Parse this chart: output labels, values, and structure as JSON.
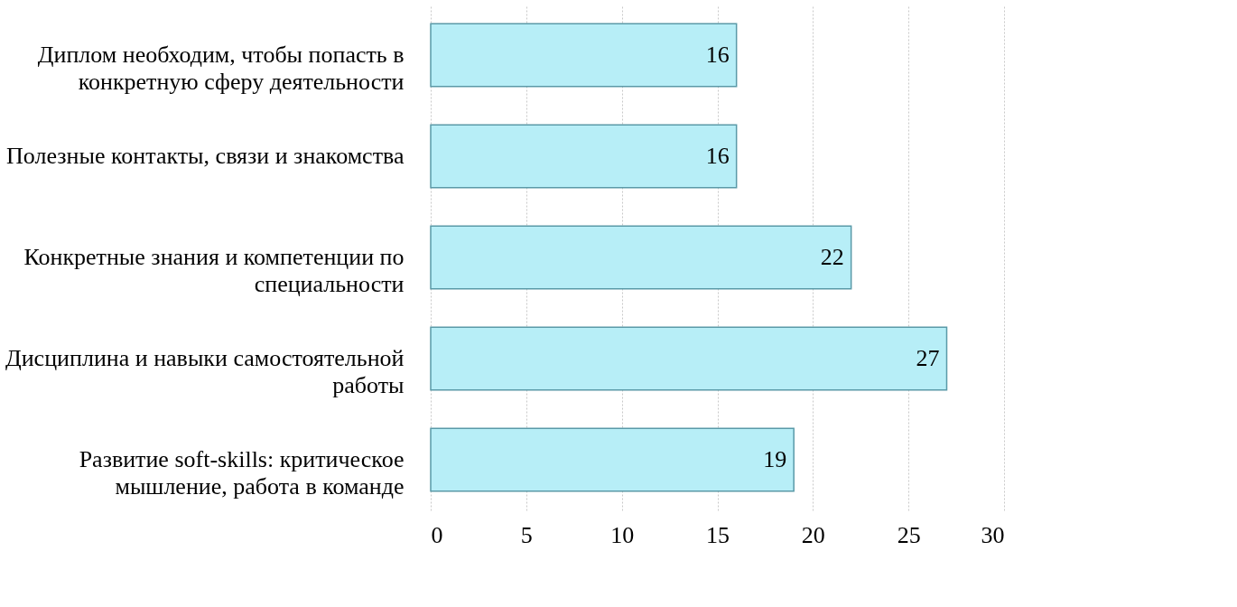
{
  "chart_data": {
    "type": "bar",
    "orientation": "horizontal",
    "categories": [
      "Диплом необходим, чтобы попасть в конкретную сферу деятельности",
      "Полезные контакты, связи и знакомства",
      "Конкретные знания и компетенции по специальности",
      "Дисциплина и навыки самостоятельной работы",
      "Развитие soft-skills: критическое мышление, работа в команде"
    ],
    "values": [
      16,
      16,
      22,
      27,
      19
    ],
    "color": "#b7eef7",
    "xlim": [
      0,
      30
    ],
    "xticks": [
      0,
      5,
      10,
      15,
      20,
      25,
      30
    ],
    "grid": "x",
    "data_labels": true
  }
}
